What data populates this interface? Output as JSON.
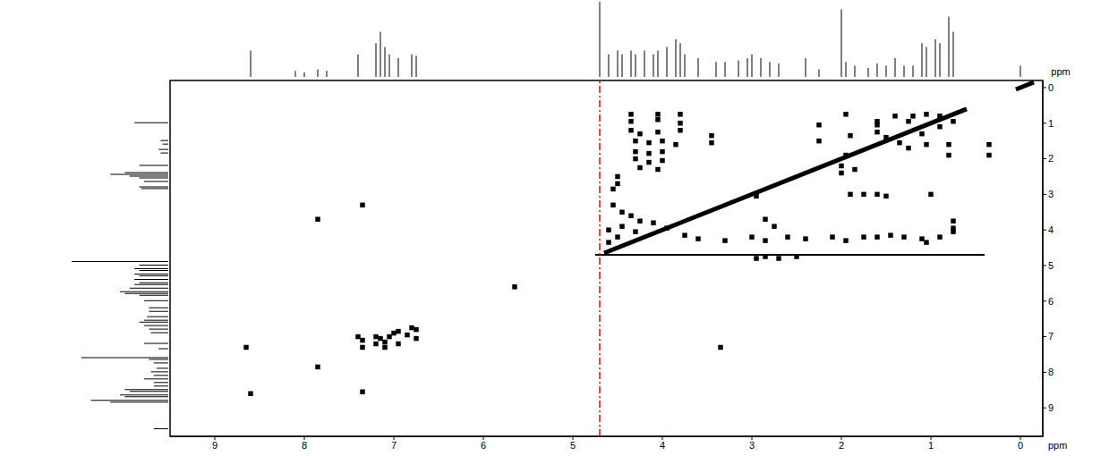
{
  "chart_data": {
    "type": "scatter",
    "x_label": "ppm",
    "y_label": "ppm",
    "xlim": [
      9.5,
      -0.25
    ],
    "ylim": [
      9.8,
      -0.2
    ],
    "xticks": [
      9,
      8,
      7,
      6,
      5,
      4,
      3,
      2,
      1,
      0
    ],
    "yticks": [
      0,
      1,
      2,
      3,
      4,
      5,
      6,
      7,
      8,
      9
    ],
    "grid": false,
    "series": [
      {
        "type": "scatter",
        "marker": "square",
        "color": "#000000",
        "x": [
          8.6,
          7.35,
          8.65,
          7.85,
          7.85,
          7.35,
          3.35,
          5.65,
          7.4,
          7.35,
          7.2,
          7.15,
          7.1,
          7.05,
          7.2,
          7.1,
          7.35,
          6.95,
          6.8,
          6.75,
          6.85,
          7.0,
          6.75,
          6.95,
          4.35,
          4.05,
          3.8,
          4.35,
          4.05,
          3.8,
          4.35,
          4.25,
          4.05,
          3.8,
          4.3,
          4.15,
          4.0,
          3.85,
          4.3,
          4.15,
          4.0,
          4.3,
          4.15,
          4.0,
          4.25,
          4.05,
          4.5,
          4.5,
          4.55,
          3.45,
          3.45,
          2.25,
          2.25,
          1.95,
          1.4,
          1.2,
          1.05,
          0.9,
          1.6,
          1.25,
          1.6,
          1.5,
          1.35,
          1.1,
          0.9,
          0.75,
          0.8,
          0.8,
          0.35,
          0.35,
          1.25,
          1.05,
          1.6,
          1.9,
          1.95,
          2.0,
          2.0,
          1.85,
          2.95,
          1.9,
          1.75,
          1.6,
          1.5,
          1.0,
          4.55,
          4.45,
          4.35,
          4.25,
          4.1,
          3.95,
          4.45,
          4.6,
          4.3,
          4.5,
          4.6,
          2.85,
          2.75,
          0.75,
          0.75,
          3.75,
          3.6,
          3.3,
          3.0,
          2.85,
          2.6,
          2.4,
          2.1,
          1.95,
          1.75,
          1.6,
          1.45,
          1.3,
          1.1,
          1.05,
          0.9,
          0.75,
          2.95,
          2.85,
          2.7,
          2.5
        ],
        "values": [
          8.6,
          8.55,
          7.3,
          7.85,
          3.7,
          3.3,
          7.3,
          5.6,
          7.0,
          7.1,
          7.0,
          7.05,
          7.15,
          7.0,
          7.2,
          7.3,
          7.3,
          6.85,
          6.75,
          6.8,
          6.95,
          6.9,
          7.05,
          7.2,
          0.75,
          0.75,
          0.75,
          0.95,
          0.9,
          1.0,
          1.2,
          1.3,
          1.25,
          1.2,
          1.5,
          1.55,
          1.5,
          1.6,
          1.8,
          1.85,
          1.8,
          2.0,
          2.1,
          2.05,
          2.25,
          2.3,
          2.5,
          2.7,
          2.85,
          1.35,
          1.55,
          1.05,
          1.5,
          0.75,
          0.8,
          0.8,
          0.75,
          0.8,
          0.95,
          0.95,
          1.25,
          1.4,
          1.55,
          1.3,
          1.1,
          0.95,
          1.6,
          1.9,
          1.6,
          1.9,
          1.7,
          1.6,
          1.05,
          1.35,
          1.9,
          2.2,
          2.4,
          2.3,
          3.05,
          3.0,
          3.0,
          3.0,
          3.05,
          3.0,
          3.3,
          3.5,
          3.6,
          3.75,
          3.8,
          3.95,
          3.9,
          4.0,
          4.05,
          4.2,
          4.35,
          3.7,
          3.9,
          3.75,
          3.95,
          4.15,
          4.25,
          4.3,
          4.2,
          4.3,
          4.2,
          4.25,
          4.2,
          4.3,
          4.2,
          4.2,
          4.15,
          4.2,
          4.25,
          4.35,
          4.2,
          4.05,
          4.8,
          4.75,
          4.8,
          4.75
        ]
      },
      {
        "type": "line",
        "color": "#000000",
        "line_style": "solid",
        "x": [
          4.65,
          0.6,
          0.3,
          0.05,
          -0.15
        ],
        "values": [
          4.65,
          0.6,
          null,
          0.05,
          -0.15
        ]
      },
      {
        "type": "line",
        "color": "#000000",
        "line_style": "solid",
        "x": [
          4.75,
          0.4
        ],
        "values": [
          4.7,
          4.7
        ]
      },
      {
        "type": "line",
        "color": "#ff0000",
        "line_style": "dashdot",
        "x": [
          4.7,
          4.7
        ],
        "values": [
          9.8,
          -0.2
        ]
      }
    ],
    "projection": {
      "type": "bar",
      "color": "#000000",
      "x": [
        8.6,
        8.1,
        8.0,
        7.85,
        7.75,
        7.4,
        7.2,
        7.15,
        7.1,
        7.05,
        6.95,
        6.8,
        6.75,
        4.7,
        4.6,
        4.5,
        4.45,
        4.35,
        4.3,
        4.2,
        4.1,
        4.05,
        3.95,
        3.85,
        3.8,
        3.75,
        3.6,
        3.4,
        3.3,
        3.15,
        3.05,
        3.0,
        2.9,
        2.8,
        2.7,
        2.4,
        2.25,
        2.0,
        1.95,
        1.85,
        1.7,
        1.6,
        1.5,
        1.4,
        1.3,
        1.2,
        1.1,
        1.05,
        0.95,
        0.9,
        0.8,
        0.75,
        0.0
      ],
      "values": [
        35,
        8,
        6,
        10,
        8,
        30,
        45,
        60,
        40,
        30,
        25,
        30,
        28,
        100,
        30,
        35,
        30,
        35,
        30,
        35,
        30,
        35,
        40,
        50,
        45,
        30,
        25,
        20,
        20,
        22,
        25,
        30,
        25,
        20,
        18,
        25,
        10,
        90,
        20,
        15,
        12,
        18,
        15,
        25,
        15,
        15,
        45,
        40,
        50,
        45,
        80,
        60,
        15
      ]
    }
  }
}
